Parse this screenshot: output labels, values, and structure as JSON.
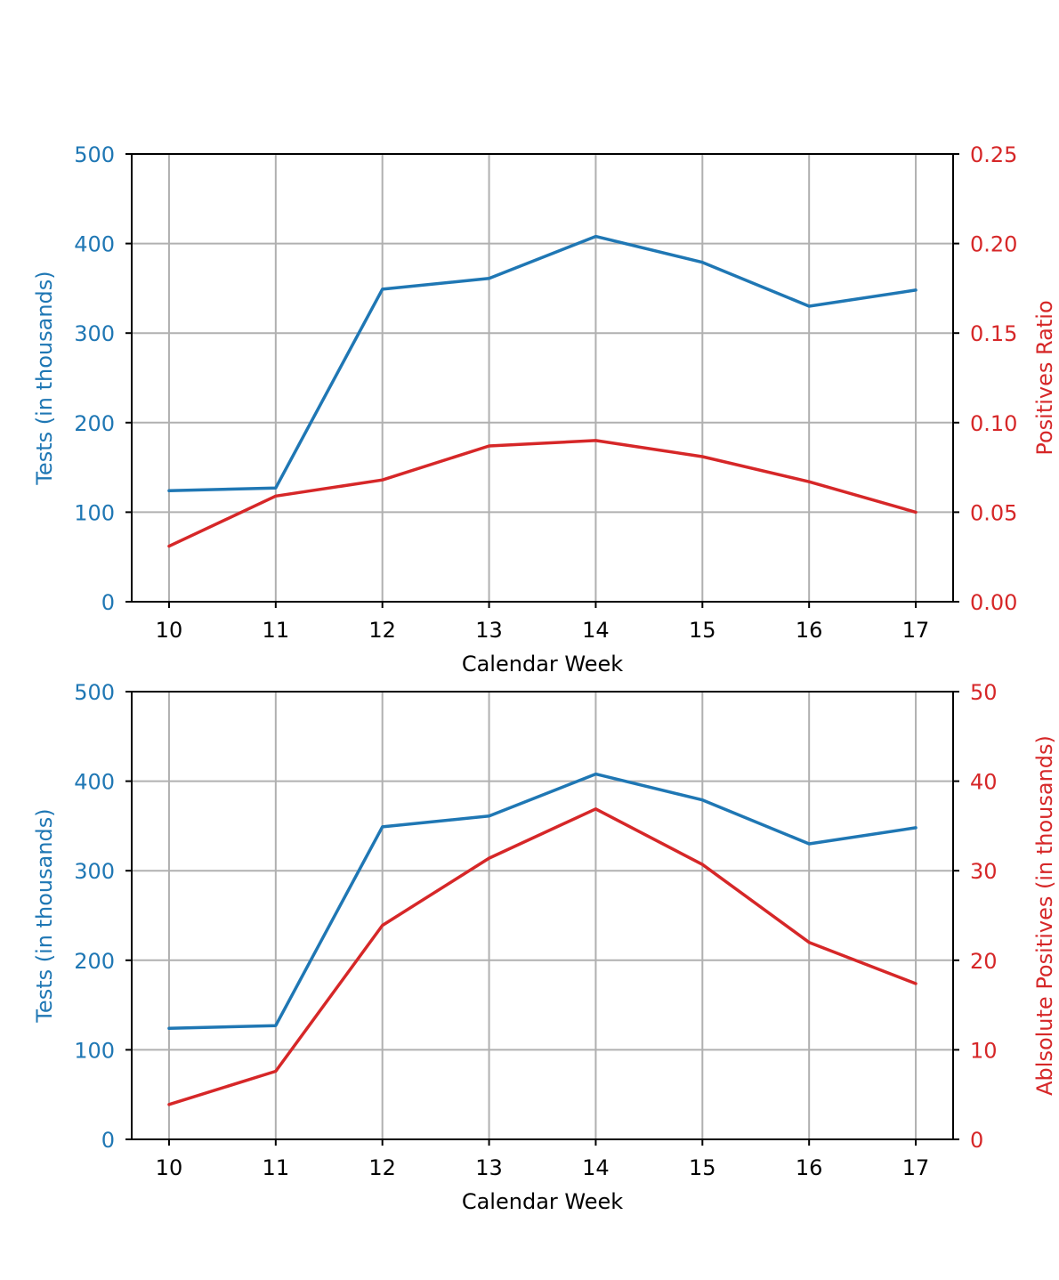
{
  "colors": {
    "tests": "#1f77b4",
    "positives": "#d62728",
    "axis": "#000000",
    "grid": "#b0b0b0"
  },
  "chart_data": [
    {
      "type": "line",
      "xlabel": "Calendar Week",
      "ylabel_left": "Tests (in thousands)",
      "ylabel_right": "Positives Ratio",
      "x": [
        10,
        11,
        12,
        13,
        14,
        15,
        16,
        17
      ],
      "x_ticks": [
        "10",
        "11",
        "12",
        "13",
        "14",
        "15",
        "16",
        "17"
      ],
      "xlim": [
        9.65,
        17.35
      ],
      "ylim_left": [
        0,
        500
      ],
      "ylim_right": [
        0,
        0.25
      ],
      "left_ticks": [
        "0",
        "100",
        "200",
        "300",
        "400",
        "500"
      ],
      "right_ticks": [
        "0.00",
        "0.05",
        "0.10",
        "0.15",
        "0.20",
        "0.25"
      ],
      "grid": true,
      "series": [
        {
          "axis": "left",
          "color": "#1f77b4",
          "values": [
            124,
            127,
            349,
            361,
            408,
            379,
            330,
            348
          ]
        },
        {
          "axis": "right",
          "color": "#d62728",
          "values": [
            0.031,
            0.059,
            0.068,
            0.087,
            0.09,
            0.081,
            0.067,
            0.05
          ]
        }
      ]
    },
    {
      "type": "line",
      "xlabel": "Calendar Week",
      "ylabel_left": "Tests (in thousands)",
      "ylabel_right": "Ablsolute Positives (in thousands)",
      "x": [
        10,
        11,
        12,
        13,
        14,
        15,
        16,
        17
      ],
      "x_ticks": [
        "10",
        "11",
        "12",
        "13",
        "14",
        "15",
        "16",
        "17"
      ],
      "xlim": [
        9.65,
        17.35
      ],
      "ylim_left": [
        0,
        500
      ],
      "ylim_right": [
        0,
        50
      ],
      "left_ticks": [
        "0",
        "100",
        "200",
        "300",
        "400",
        "500"
      ],
      "right_ticks": [
        "0",
        "10",
        "20",
        "30",
        "40",
        "50"
      ],
      "grid": true,
      "series": [
        {
          "axis": "left",
          "color": "#1f77b4",
          "values": [
            124,
            127,
            349,
            361,
            408,
            379,
            330,
            348
          ]
        },
        {
          "axis": "right",
          "color": "#d62728",
          "values": [
            3.9,
            7.6,
            23.9,
            31.4,
            36.9,
            30.7,
            22.0,
            17.4
          ]
        }
      ]
    }
  ]
}
